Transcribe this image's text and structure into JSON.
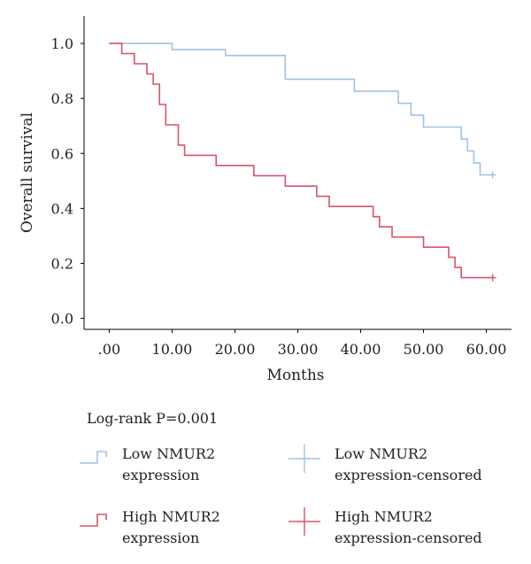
{
  "chart_data": {
    "type": "line",
    "step": true,
    "xlabel": "Months",
    "ylabel": "Overall survival",
    "xlim": [
      -4,
      64
    ],
    "ylim": [
      -0.04,
      1.1
    ],
    "x_ticks": [
      {
        "value": 0,
        "label": ".00"
      },
      {
        "value": 10,
        "label": "10.00"
      },
      {
        "value": 20,
        "label": "20.00"
      },
      {
        "value": 30,
        "label": "30.00"
      },
      {
        "value": 40,
        "label": "40.00"
      },
      {
        "value": 50,
        "label": "50.00"
      },
      {
        "value": 60,
        "label": "60.00"
      }
    ],
    "y_ticks": [
      {
        "value": 0.0,
        "label": "0.0"
      },
      {
        "value": 0.2,
        "label": "0.2"
      },
      {
        "value": 0.4,
        "label": "0.4"
      },
      {
        "value": 0.6,
        "label": "0.6"
      },
      {
        "value": 0.8,
        "label": "0.8"
      },
      {
        "value": 1.0,
        "label": "1.0"
      }
    ],
    "grid": false,
    "legend_position": "bottom",
    "annotation": "Log-rank P=0.001",
    "series": [
      {
        "name": "Low NMUR2 expression",
        "color": "#9ec2e6",
        "points": [
          [
            0,
            1.0
          ],
          [
            10,
            1.0
          ],
          [
            10,
            0.978
          ],
          [
            18.5,
            0.978
          ],
          [
            18.5,
            0.956
          ],
          [
            28,
            0.956
          ],
          [
            28,
            0.87
          ],
          [
            39,
            0.87
          ],
          [
            39,
            0.826
          ],
          [
            46,
            0.826
          ],
          [
            46,
            0.782
          ],
          [
            48,
            0.782
          ],
          [
            48,
            0.739
          ],
          [
            50,
            0.739
          ],
          [
            50,
            0.696
          ],
          [
            56,
            0.696
          ],
          [
            56,
            0.652
          ],
          [
            57,
            0.652
          ],
          [
            57,
            0.609
          ],
          [
            58,
            0.609
          ],
          [
            58,
            0.565
          ],
          [
            59,
            0.565
          ],
          [
            59,
            0.522
          ],
          [
            61,
            0.522
          ]
        ],
        "censored_name": "Low NMUR2 expression-censored",
        "censored": [
          [
            61,
            0.522
          ]
        ]
      },
      {
        "name": "High NMUR2 expression",
        "color": "#d9546a",
        "points": [
          [
            0,
            1.0
          ],
          [
            2,
            1.0
          ],
          [
            2,
            0.963
          ],
          [
            4,
            0.963
          ],
          [
            4,
            0.926
          ],
          [
            6,
            0.926
          ],
          [
            6,
            0.889
          ],
          [
            7,
            0.889
          ],
          [
            7,
            0.852
          ],
          [
            8,
            0.852
          ],
          [
            8,
            0.778
          ],
          [
            9,
            0.778
          ],
          [
            9,
            0.704
          ],
          [
            11,
            0.704
          ],
          [
            11,
            0.63
          ],
          [
            12,
            0.63
          ],
          [
            12,
            0.593
          ],
          [
            17,
            0.593
          ],
          [
            17,
            0.556
          ],
          [
            23,
            0.556
          ],
          [
            23,
            0.519
          ],
          [
            28,
            0.519
          ],
          [
            28,
            0.481
          ],
          [
            33,
            0.481
          ],
          [
            33,
            0.444
          ],
          [
            35,
            0.444
          ],
          [
            35,
            0.407
          ],
          [
            42,
            0.407
          ],
          [
            42,
            0.37
          ],
          [
            43,
            0.37
          ],
          [
            43,
            0.333
          ],
          [
            45,
            0.333
          ],
          [
            45,
            0.296
          ],
          [
            50,
            0.296
          ],
          [
            50,
            0.259
          ],
          [
            54,
            0.259
          ],
          [
            54,
            0.222
          ],
          [
            55,
            0.222
          ],
          [
            55,
            0.185
          ],
          [
            56,
            0.185
          ],
          [
            56,
            0.148
          ],
          [
            61,
            0.148
          ]
        ],
        "censored_name": "High NMUR2 expression-censored",
        "censored": [
          [
            61,
            0.148
          ]
        ]
      }
    ],
    "legend": [
      {
        "label_lines": [
          "Low NMUR2",
          "expression"
        ],
        "color": "#9ec2e6",
        "symbol": "step"
      },
      {
        "label_lines": [
          "Low NMUR2",
          "expression-censored"
        ],
        "color": "#9ec2e6",
        "symbol": "plus"
      },
      {
        "label_lines": [
          "High NMUR2",
          "expression"
        ],
        "color": "#d9546a",
        "symbol": "step"
      },
      {
        "label_lines": [
          "High NMUR2",
          "expression-censored"
        ],
        "color": "#d9546a",
        "symbol": "plus"
      }
    ]
  }
}
